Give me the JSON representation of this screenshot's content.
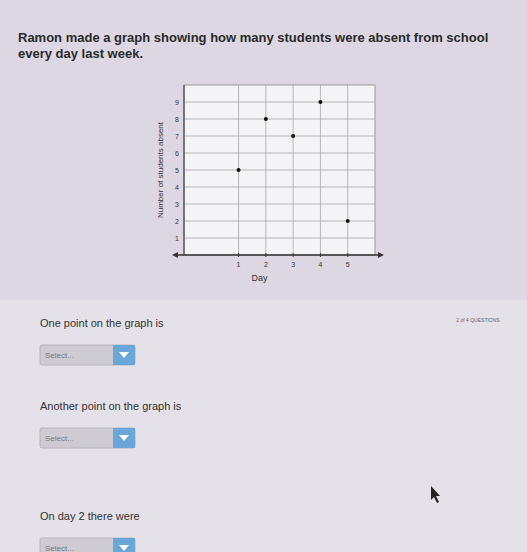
{
  "chart_data": {
    "type": "scatter",
    "title": "Ramon made a graph showing how many students were absent from school every day last week.",
    "x_label": "Day",
    "y_label": "Number of students absent",
    "x": [
      1,
      2,
      3,
      4,
      5
    ],
    "values": [
      5,
      8,
      7,
      9,
      2
    ],
    "xlim": [
      -1,
      6
    ],
    "ylim": [
      0,
      10
    ],
    "xticks": [
      1,
      2,
      3,
      4,
      5
    ],
    "yticks": [
      1,
      2,
      3,
      4,
      5,
      6,
      7,
      8,
      9
    ],
    "grid": true,
    "color": "#111111",
    "marker": "circle"
  },
  "page": {
    "progress": "2 of 4 QUESTIONS",
    "questions": [
      {
        "prompt": "One point on the graph is",
        "select": "Select..."
      },
      {
        "prompt": "Another point on the graph is",
        "select": "Select..."
      },
      {
        "prompt": "On day 2 there were",
        "select": "Select..."
      }
    ]
  }
}
